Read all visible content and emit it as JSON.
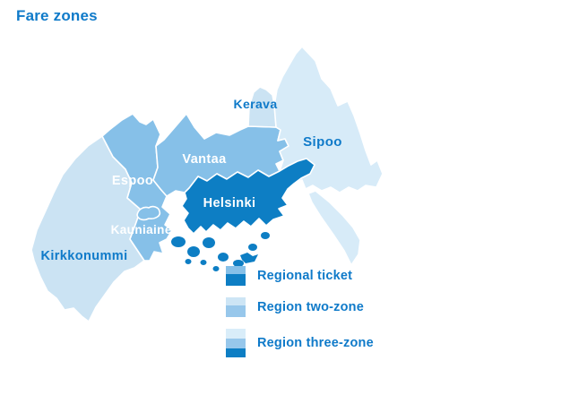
{
  "page": {
    "title": "Fare zones"
  },
  "colors": {
    "title": "#0f7ac9",
    "blue_label": "#0f7ac9",
    "white_label": "#ffffff",
    "zone_regional_dark": "#0d7ec4",
    "zone_regional_medium": "#86c0e8",
    "zone_two": "#cbe3f3",
    "zone_three": "#d7ebf8"
  },
  "map": {
    "labels": {
      "kirkkonummi": "Kirkkonummi",
      "espoo": "Espoo",
      "kauniainen": "Kauniainen",
      "vantaa": "Vantaa",
      "helsinki": "Helsinki",
      "kerava": "Kerava",
      "sipoo": "Sipoo"
    }
  },
  "legend": {
    "items": [
      {
        "label": "Regional ticket",
        "bands": [
          {
            "color": "#86c0e8",
            "h": 9
          },
          {
            "color": "#0d7ec4",
            "h": 13
          }
        ]
      },
      {
        "label": "Region two-zone",
        "bands": [
          {
            "color": "#cde5f5",
            "h": 9
          },
          {
            "color": "#97c7eb",
            "h": 13
          }
        ]
      },
      {
        "label": "Region three-zone",
        "bands": [
          {
            "color": "#d9edf9",
            "h": 11
          },
          {
            "color": "#97c7eb",
            "h": 11
          },
          {
            "color": "#0d7ec4",
            "h": 10
          }
        ]
      }
    ]
  }
}
